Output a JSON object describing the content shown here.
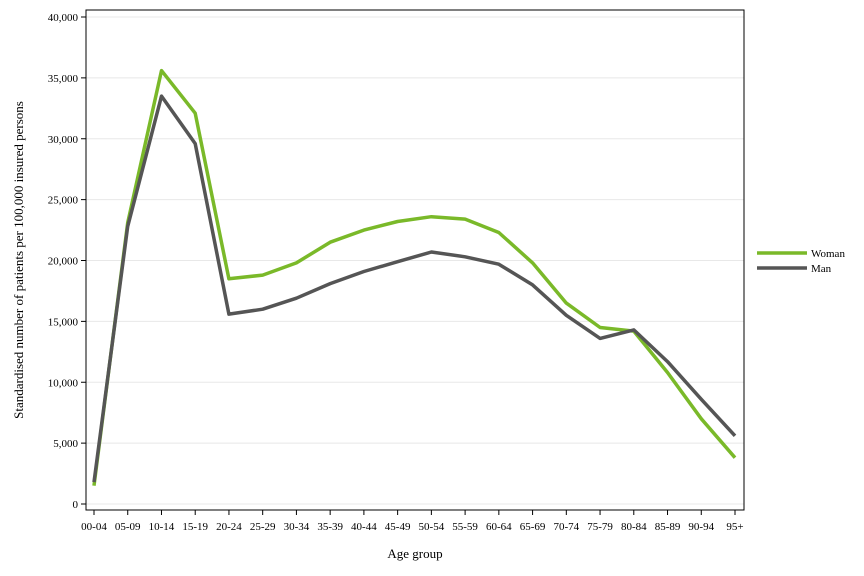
{
  "chart_data": {
    "type": "line",
    "categories": [
      "00-04",
      "05-09",
      "10-14",
      "15-19",
      "20-24",
      "25-29",
      "30-34",
      "35-39",
      "40-44",
      "45-49",
      "50-54",
      "55-59",
      "60-64",
      "65-69",
      "70-74",
      "75-79",
      "80-84",
      "85-89",
      "90-94",
      "95+"
    ],
    "series": [
      {
        "name": "Woman",
        "color": "#7ab929",
        "values": [
          1500,
          23100,
          35600,
          32100,
          18500,
          18800,
          19800,
          21500,
          22500,
          23200,
          23600,
          23400,
          22300,
          19800,
          16500,
          14500,
          14200,
          10800,
          7000,
          3800
        ]
      },
      {
        "name": "Man",
        "color": "#555555",
        "values": [
          1800,
          22800,
          33500,
          29600,
          15600,
          16000,
          16900,
          18100,
          19100,
          19900,
          20700,
          20300,
          19700,
          18000,
          15500,
          13600,
          14300,
          11700,
          8600,
          5600
        ]
      }
    ],
    "xlabel": "Age group",
    "ylabel": "Standardised number of patients per 100,000 insured persons",
    "ylim": [
      0,
      40000
    ],
    "yticks": [
      0,
      5000,
      10000,
      15000,
      20000,
      25000,
      30000,
      35000,
      40000
    ],
    "ytick_labels": [
      "0",
      "5,000",
      "10,000",
      "15,000",
      "20,000",
      "25,000",
      "30,000",
      "35,000",
      "40,000"
    ],
    "grid": "horizontal",
    "legend_position": "right"
  }
}
